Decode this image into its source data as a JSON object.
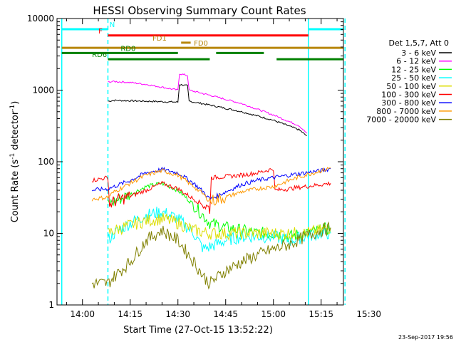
{
  "chart_data": {
    "type": "line",
    "title": "HESSI Observing Summary Count Rates",
    "xlabel": "Start Time (27-Oct-15 13:52:22)",
    "ylabel_main": "Count Rate (s",
    "ylabel_sup1": "-1",
    "ylabel_mid": " detector",
    "ylabel_sup2": "-1",
    "ylabel_end": ")",
    "y_scale": "log",
    "ylim": [
      1,
      10000
    ],
    "xlim_minutes": [
      -8,
      82
    ],
    "x_ticks": [
      {
        "label": "14:00",
        "m": 0
      },
      {
        "label": "14:15",
        "m": 15
      },
      {
        "label": "14:30",
        "m": 30
      },
      {
        "label": "14:45",
        "m": 45
      },
      {
        "label": "15:00",
        "m": 60
      },
      {
        "label": "15:15",
        "m": 75
      },
      {
        "label": "15:30",
        "m": 90
      }
    ],
    "y_ticks": [
      {
        "label": "1",
        "v": 1
      },
      {
        "label": "10",
        "v": 10
      },
      {
        "label": "100",
        "v": 100
      },
      {
        "label": "1000",
        "v": 1000
      },
      {
        "label": "10000",
        "v": 10000
      }
    ],
    "legend_header": "Det 1,5,7, Att 0",
    "legend_placement": "right",
    "timestamp": "23-Sep-2017 19:56",
    "series": [
      {
        "name": "3 - 6 keV",
        "color": "#000000",
        "x": [
          8,
          10,
          15,
          20,
          25,
          30,
          30.5,
          33,
          33.5,
          40,
          50,
          60,
          68,
          70.5
        ],
        "y": [
          700,
          720,
          710,
          700,
          690,
          680,
          1200,
          1150,
          700,
          620,
          500,
          380,
          280,
          230
        ]
      },
      {
        "name": "6 - 12 keV",
        "color": "#ff00ff",
        "x": [
          8,
          10,
          15,
          20,
          25,
          30,
          30.5,
          33,
          33.5,
          40,
          50,
          60,
          68,
          70.5
        ],
        "y": [
          1300,
          1320,
          1280,
          1200,
          1100,
          1000,
          1700,
          1600,
          1000,
          850,
          650,
          450,
          320,
          250
        ]
      },
      {
        "name": "12 - 25 keV",
        "color": "#00ff00",
        "x": [
          8,
          10,
          15,
          20,
          25,
          30,
          35,
          40,
          45,
          50,
          55,
          60,
          65,
          70,
          75,
          78
        ],
        "y": [
          25,
          28,
          35,
          45,
          50,
          40,
          25,
          14,
          12,
          11,
          10,
          10,
          9,
          10,
          11,
          12
        ]
      },
      {
        "name": "25 - 50 keV",
        "color": "#00ffff",
        "x": [
          8,
          10,
          15,
          20,
          25,
          30,
          35,
          38,
          42,
          45,
          50,
          55,
          60,
          65,
          70,
          75,
          78
        ],
        "y": [
          8,
          10,
          14,
          18,
          20,
          16,
          10,
          6,
          7,
          8,
          9,
          9,
          9,
          8,
          9,
          10,
          10
        ]
      },
      {
        "name": "50 - 100 keV",
        "color": "#dddd00",
        "x": [
          8,
          10,
          15,
          20,
          25,
          30,
          35,
          40,
          45,
          50,
          55,
          60,
          65,
          70,
          75,
          78
        ],
        "y": [
          10,
          11,
          13,
          15,
          16,
          14,
          11,
          10,
          10,
          10,
          10,
          10,
          10,
          10,
          11,
          12
        ]
      },
      {
        "name": "100 - 300 keV",
        "color": "#ff0000",
        "x": [
          3,
          8,
          8.5,
          10,
          15,
          20,
          25,
          30,
          35,
          38,
          40,
          40.5,
          45,
          50,
          55,
          60,
          60.5,
          65,
          70,
          75,
          78
        ],
        "y": [
          55,
          60,
          25,
          28,
          33,
          40,
          50,
          42,
          30,
          25,
          22,
          60,
          62,
          65,
          70,
          80,
          40,
          42,
          45,
          48,
          50
        ]
      },
      {
        "name": "300 - 800 keV",
        "color": "#0000ff",
        "x": [
          3,
          8,
          10,
          15,
          20,
          25,
          30,
          35,
          38,
          40,
          45,
          50,
          55,
          60,
          65,
          70,
          75,
          78
        ],
        "y": [
          40,
          42,
          45,
          55,
          70,
          78,
          70,
          50,
          38,
          30,
          38,
          48,
          55,
          60,
          65,
          70,
          75,
          80
        ]
      },
      {
        "name": "800 - 7000 keV",
        "color": "#ff9900",
        "x": [
          3,
          8,
          10,
          15,
          20,
          25,
          30,
          35,
          38,
          40,
          45,
          50,
          55,
          60,
          65,
          70,
          75,
          78
        ],
        "y": [
          30,
          32,
          38,
          50,
          65,
          75,
          65,
          45,
          35,
          28,
          32,
          38,
          42,
          45,
          55,
          65,
          75,
          82
        ]
      },
      {
        "name": "7000 - 20000 keV",
        "color": "#808000",
        "x": [
          3,
          8,
          10,
          15,
          20,
          25,
          30,
          35,
          38,
          40,
          45,
          50,
          55,
          60,
          65,
          70,
          75,
          78
        ],
        "y": [
          2,
          2,
          2.5,
          4,
          8,
          11,
          8,
          4,
          2.5,
          2,
          3,
          4,
          5,
          6,
          7,
          9,
          11,
          12
        ]
      }
    ],
    "vertical_lines": [
      {
        "m": -6.5,
        "color": "#00ffff",
        "dashed": false
      },
      {
        "m": 8,
        "color": "#00ffff",
        "dashed": true
      },
      {
        "m": 71,
        "color": "#00ffff",
        "dashed": false
      },
      {
        "m": 82.5,
        "color": "#00ffff",
        "dashed": true
      }
    ],
    "flag_bars": [
      {
        "label": "N",
        "color": "#00ffff",
        "y": 7100,
        "segments": [
          [
            -6.5,
            8
          ],
          [
            71,
            82.5
          ]
        ],
        "label_m": 8.5
      },
      {
        "label": "F",
        "color": "#ff0000",
        "y": 5800,
        "segments": [
          [
            8,
            71
          ]
        ],
        "label_m": 5
      },
      {
        "label": "FD1",
        "color": "#b8860b",
        "y": 4600,
        "segments": [
          [
            31,
            34
          ]
        ],
        "label_m": 22
      },
      {
        "label": "FD0",
        "color": "#b8860b",
        "y": 3900,
        "segments": [
          [
            -6.5,
            82.5
          ]
        ],
        "label_m": 35
      },
      {
        "label": "RD0",
        "color": "#008000",
        "y": 3300,
        "segments": [
          [
            -6.5,
            30
          ],
          [
            42,
            57
          ]
        ],
        "label_m": 12
      },
      {
        "label": "RD6",
        "color": "#008000",
        "y": 2700,
        "segments": [
          [
            8,
            40
          ],
          [
            61,
            82.5
          ]
        ],
        "label_m": 3
      }
    ]
  }
}
